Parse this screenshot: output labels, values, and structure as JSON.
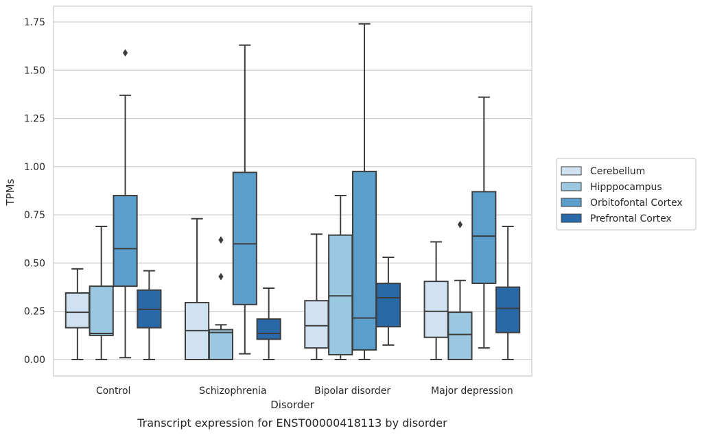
{
  "chart_data": {
    "type": "box",
    "title": "",
    "caption": "Transcript expression for ENST00000418113 by disorder",
    "xlabel": "Disorder",
    "ylabel": "TPMs",
    "ylim": [
      -0.08,
      1.83
    ],
    "yticks": [
      "0.00",
      "0.25",
      "0.50",
      "0.75",
      "1.00",
      "1.25",
      "1.50",
      "1.75"
    ],
    "grid": "horizontal",
    "legend_position": "right",
    "categories": [
      "Control",
      "Schizophrenia",
      "Bipolar disorder",
      "Major depression"
    ],
    "series": [
      {
        "name": "Cerebellum",
        "color": "#d0e1f2",
        "boxes": [
          {
            "min": 0.0,
            "q1": 0.165,
            "median": 0.245,
            "q3": 0.345,
            "max": 0.47,
            "outliers": []
          },
          {
            "min": 0.0,
            "q1": 0.0,
            "median": 0.15,
            "q3": 0.295,
            "max": 0.73,
            "outliers": []
          },
          {
            "min": 0.0,
            "q1": 0.06,
            "median": 0.175,
            "q3": 0.305,
            "max": 0.65,
            "outliers": []
          },
          {
            "min": 0.0,
            "q1": 0.115,
            "median": 0.25,
            "q3": 0.405,
            "max": 0.61,
            "outliers": []
          }
        ]
      },
      {
        "name": "Hipppocampus",
        "color": "#9ac8e0",
        "boxes": [
          {
            "min": 0.0,
            "q1": 0.125,
            "median": 0.135,
            "q3": 0.38,
            "max": 0.69,
            "outliers": []
          },
          {
            "min": 0.0,
            "q1": 0.0,
            "median": 0.14,
            "q3": 0.155,
            "max": 0.18,
            "outliers": [
              0.43,
              0.62
            ]
          },
          {
            "min": 0.0,
            "q1": 0.025,
            "median": 0.33,
            "q3": 0.645,
            "max": 0.85,
            "outliers": []
          },
          {
            "min": 0.0,
            "q1": 0.0,
            "median": 0.13,
            "q3": 0.245,
            "max": 0.41,
            "outliers": [
              0.7
            ]
          }
        ]
      },
      {
        "name": "Orbitofontal Cortex",
        "color": "#5a9fcc",
        "boxes": [
          {
            "min": 0.01,
            "q1": 0.38,
            "median": 0.575,
            "q3": 0.85,
            "max": 1.37,
            "outliers": [
              1.59
            ]
          },
          {
            "min": 0.03,
            "q1": 0.285,
            "median": 0.6,
            "q3": 0.97,
            "max": 1.63,
            "outliers": []
          },
          {
            "min": 0.0,
            "q1": 0.05,
            "median": 0.215,
            "q3": 0.975,
            "max": 1.74,
            "outliers": []
          },
          {
            "min": 0.06,
            "q1": 0.395,
            "median": 0.64,
            "q3": 0.87,
            "max": 1.36,
            "outliers": []
          }
        ]
      },
      {
        "name": "Prefrontal Cortex",
        "color": "#2a69a8",
        "boxes": [
          {
            "min": 0.0,
            "q1": 0.165,
            "median": 0.26,
            "q3": 0.36,
            "max": 0.46,
            "outliers": []
          },
          {
            "min": 0.0,
            "q1": 0.105,
            "median": 0.135,
            "q3": 0.21,
            "max": 0.37,
            "outliers": []
          },
          {
            "min": 0.075,
            "q1": 0.17,
            "median": 0.32,
            "q3": 0.395,
            "max": 0.53,
            "outliers": []
          },
          {
            "min": 0.0,
            "q1": 0.14,
            "median": 0.265,
            "q3": 0.375,
            "max": 0.69,
            "outliers": []
          }
        ]
      }
    ]
  }
}
